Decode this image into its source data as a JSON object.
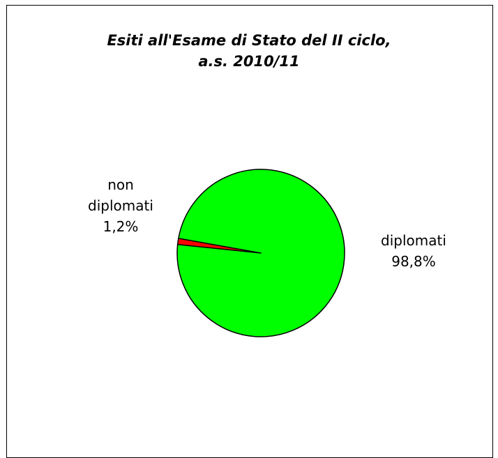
{
  "chart_data": {
    "type": "pie",
    "title": [
      "Esiti all'Esame di Stato del II ciclo,",
      "a.s. 2010/11"
    ],
    "slices": [
      {
        "name": [
          "non",
          "diplomati"
        ],
        "value": 1.2,
        "label": "1,2%",
        "color": "#ff0000"
      },
      {
        "name": [
          "diplomati"
        ],
        "value": 98.8,
        "label": "98,8%",
        "color": "#00ff00"
      }
    ],
    "legend": "none"
  }
}
